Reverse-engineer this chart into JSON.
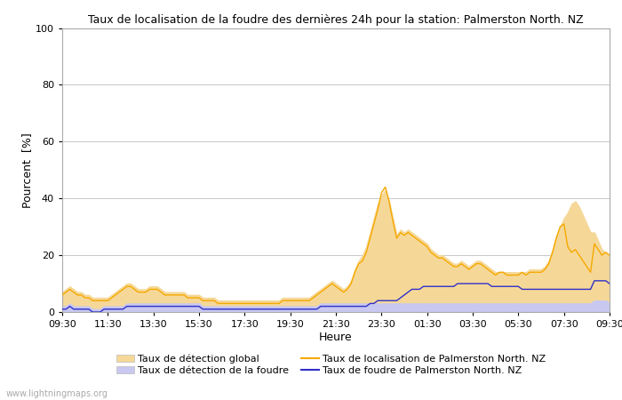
{
  "title": "Taux de localisation de la foudre des dernières 24h pour la station: Palmerston North. NZ",
  "xlabel": "Heure",
  "ylabel": "Pourcent  [%]",
  "xlim_labels": [
    "09:30",
    "11:30",
    "13:30",
    "15:30",
    "17:30",
    "19:30",
    "21:30",
    "23:30",
    "01:30",
    "03:30",
    "05:30",
    "07:30",
    "09:30"
  ],
  "ylim": [
    0,
    100
  ],
  "yticks": [
    0,
    20,
    40,
    60,
    80,
    100
  ],
  "watermark": "www.lightningmaps.org",
  "bg_color": "#ffffff",
  "plot_bg_color": "#ffffff",
  "grid_color": "#c8c8c8",
  "fill_global_color": "#f5d898",
  "fill_foudre_color": "#c8c8f0",
  "line_local_color": "#f5a800",
  "line_foudre_color": "#3030c8",
  "legend": [
    {
      "label": "Taux de détection global",
      "type": "fill",
      "color": "#f5d898"
    },
    {
      "label": "Taux de localisation de Palmerston North. NZ",
      "type": "line",
      "color": "#f5a800"
    },
    {
      "label": "Taux de détection de la foudre",
      "type": "fill",
      "color": "#c8c8f0"
    },
    {
      "label": "Taux de foudre de Palmerston North. NZ",
      "type": "line",
      "color": "#3030c8"
    }
  ],
  "n_points": 145,
  "global_detection": [
    7,
    8,
    9,
    8,
    7,
    7,
    6,
    6,
    5,
    5,
    5,
    5,
    5,
    6,
    7,
    8,
    9,
    10,
    10,
    9,
    8,
    8,
    8,
    9,
    9,
    9,
    8,
    7,
    7,
    7,
    7,
    7,
    7,
    6,
    6,
    6,
    6,
    5,
    5,
    5,
    5,
    4,
    4,
    4,
    4,
    4,
    4,
    4,
    4,
    4,
    4,
    4,
    4,
    4,
    4,
    4,
    4,
    4,
    5,
    5,
    5,
    5,
    5,
    5,
    5,
    5,
    6,
    7,
    8,
    9,
    10,
    11,
    10,
    9,
    8,
    9,
    11,
    15,
    18,
    20,
    23,
    28,
    33,
    38,
    41,
    43,
    39,
    33,
    27,
    29,
    28,
    29,
    28,
    27,
    26,
    25,
    24,
    22,
    21,
    20,
    20,
    19,
    18,
    17,
    17,
    18,
    17,
    16,
    17,
    18,
    18,
    17,
    16,
    15,
    14,
    14,
    14,
    14,
    14,
    14,
    14,
    14,
    14,
    15,
    15,
    15,
    15,
    16,
    18,
    22,
    27,
    30,
    33,
    35,
    38,
    39,
    37,
    34,
    31,
    28,
    28,
    25,
    22,
    21,
    20
  ],
  "local_detection": [
    6,
    7,
    8,
    7,
    6,
    6,
    5,
    5,
    4,
    4,
    4,
    4,
    4,
    5,
    6,
    7,
    8,
    9,
    9,
    8,
    7,
    7,
    7,
    8,
    8,
    8,
    7,
    6,
    6,
    6,
    6,
    6,
    6,
    5,
    5,
    5,
    5,
    4,
    4,
    4,
    4,
    3,
    3,
    3,
    3,
    3,
    3,
    3,
    3,
    3,
    3,
    3,
    3,
    3,
    3,
    3,
    3,
    3,
    4,
    4,
    4,
    4,
    4,
    4,
    4,
    4,
    5,
    6,
    7,
    8,
    9,
    10,
    9,
    8,
    7,
    8,
    10,
    14,
    17,
    18,
    21,
    26,
    31,
    36,
    42,
    44,
    39,
    32,
    26,
    28,
    27,
    28,
    27,
    26,
    25,
    24,
    23,
    21,
    20,
    19,
    19,
    18,
    17,
    16,
    16,
    17,
    16,
    15,
    16,
    17,
    17,
    16,
    15,
    14,
    13,
    14,
    14,
    13,
    13,
    13,
    13,
    14,
    13,
    14,
    14,
    14,
    14,
    15,
    17,
    21,
    26,
    30,
    31,
    23,
    21,
    22,
    20,
    18,
    16,
    14,
    24,
    22,
    20,
    21,
    20
  ],
  "foudre_detection": [
    2,
    2,
    3,
    2,
    2,
    2,
    2,
    2,
    1,
    1,
    1,
    2,
    2,
    2,
    2,
    2,
    2,
    3,
    3,
    3,
    3,
    3,
    3,
    3,
    3,
    3,
    3,
    3,
    3,
    3,
    3,
    3,
    3,
    3,
    3,
    3,
    3,
    2,
    2,
    2,
    2,
    2,
    2,
    2,
    2,
    2,
    2,
    2,
    2,
    2,
    2,
    2,
    2,
    2,
    2,
    2,
    2,
    2,
    2,
    2,
    2,
    2,
    2,
    2,
    2,
    2,
    2,
    2,
    3,
    3,
    3,
    3,
    3,
    3,
    3,
    3,
    3,
    3,
    3,
    3,
    3,
    3,
    3,
    3,
    3,
    3,
    3,
    3,
    3,
    3,
    3,
    3,
    3,
    3,
    3,
    3,
    3,
    3,
    3,
    3,
    3,
    3,
    3,
    3,
    3,
    3,
    3,
    3,
    3,
    3,
    3,
    3,
    3,
    3,
    3,
    3,
    3,
    3,
    3,
    3,
    3,
    3,
    3,
    3,
    3,
    3,
    3,
    3,
    3,
    3,
    3,
    3,
    3,
    3,
    3,
    3,
    3,
    3,
    3,
    3,
    4,
    4,
    4,
    4,
    3
  ],
  "local_foudre": [
    1,
    1,
    2,
    1,
    1,
    1,
    1,
    1,
    0,
    0,
    0,
    1,
    1,
    1,
    1,
    1,
    1,
    2,
    2,
    2,
    2,
    2,
    2,
    2,
    2,
    2,
    2,
    2,
    2,
    2,
    2,
    2,
    2,
    2,
    2,
    2,
    2,
    1,
    1,
    1,
    1,
    1,
    1,
    1,
    1,
    1,
    1,
    1,
    1,
    1,
    1,
    1,
    1,
    1,
    1,
    1,
    1,
    1,
    1,
    1,
    1,
    1,
    1,
    1,
    1,
    1,
    1,
    1,
    2,
    2,
    2,
    2,
    2,
    2,
    2,
    2,
    2,
    2,
    2,
    2,
    2,
    3,
    3,
    4,
    4,
    4,
    4,
    4,
    4,
    5,
    6,
    7,
    8,
    8,
    8,
    9,
    9,
    9,
    9,
    9,
    9,
    9,
    9,
    9,
    10,
    10,
    10,
    10,
    10,
    10,
    10,
    10,
    10,
    9,
    9,
    9,
    9,
    9,
    9,
    9,
    9,
    8,
    8,
    8,
    8,
    8,
    8,
    8,
    8,
    8,
    8,
    8,
    8,
    8,
    8,
    8,
    8,
    8,
    8,
    8,
    11,
    11,
    11,
    11,
    10
  ]
}
